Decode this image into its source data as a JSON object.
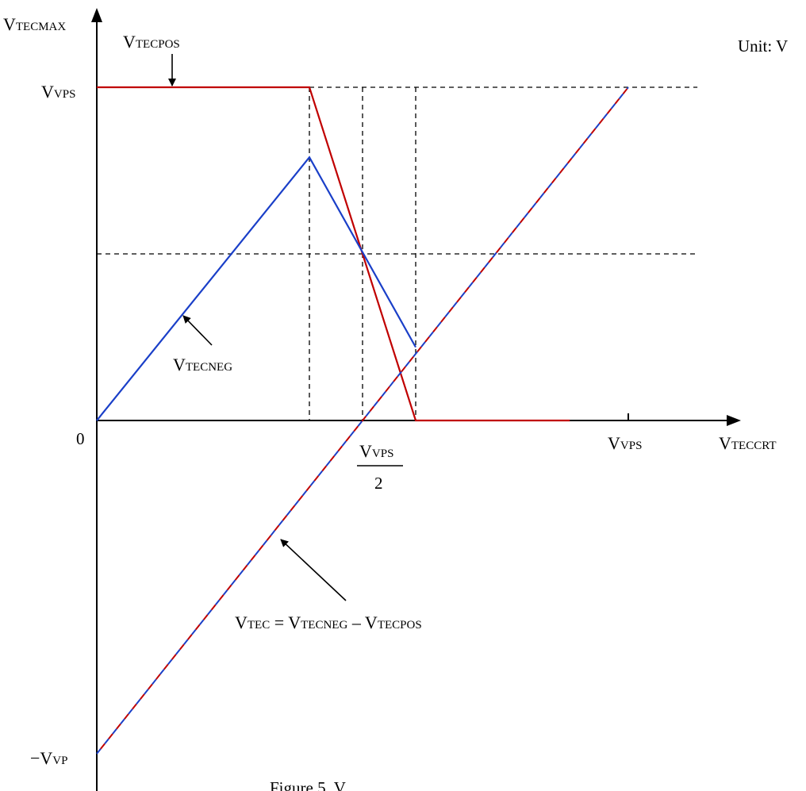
{
  "colors": {
    "tecpos": "#c00000",
    "tecneg": "#1a3fc8",
    "axis": "#000000",
    "guide": "#000000"
  },
  "labels": {
    "y_axis": {
      "main": "V",
      "sub": "TECMAX"
    },
    "x_axis": {
      "main": "V",
      "sub": "TECCRT"
    },
    "tecpos": {
      "main": "V",
      "sub": "TECPOS"
    },
    "tecneg": {
      "main": "V",
      "sub": "TECNEG"
    },
    "vps_top": {
      "main": "V",
      "sub": "VPS"
    },
    "vps_x": {
      "main": "V",
      "sub": "VPS"
    },
    "half_num": {
      "main": "V",
      "sub": "VPS"
    },
    "half_den": "2",
    "origin": "0",
    "neg_vp": {
      "main": "−V",
      "sub": "VP"
    },
    "unit": "Unit: V",
    "vtec_formula": {
      "v1": "V",
      "s1": "TEC",
      "eq": " = ",
      "v2": "V",
      "s2": "TECNEG",
      "minus": " – ",
      "v3": "V",
      "s3": "TECPOS"
    },
    "caption": "Figure 5. V"
  },
  "chart_data": {
    "type": "line",
    "x_axis_label": "VTECCRT",
    "y_axis_label": "VTECMAX",
    "x_ticks": [
      "0",
      "VPS/2",
      "VPS"
    ],
    "y_ticks": [
      "VPS",
      "0",
      "−VP"
    ],
    "xlim": [
      0,
      1.0
    ],
    "ylim": [
      -1.0,
      1.0
    ],
    "series": [
      {
        "name": "VTECPOS",
        "color": "#c00000",
        "style": "solid",
        "x": [
          0,
          0.4,
          0.6,
          0.89
        ],
        "y": [
          1.0,
          1.0,
          0,
          0
        ]
      },
      {
        "name": "VTECNEG",
        "color": "#1a3fc8",
        "style": "solid",
        "x": [
          0,
          0.4,
          0.6
        ],
        "y": [
          0,
          0.79,
          0.22
        ]
      },
      {
        "name": "VTEC = VTECNEG – VTECPOS",
        "color": "#1a3fc8",
        "color2": "#c00000",
        "style": "dashed",
        "x": [
          0,
          1.0
        ],
        "y": [
          -1.0,
          1.0
        ]
      }
    ],
    "guides": {
      "vertical_x": [
        0.4,
        0.5,
        0.6
      ],
      "horizontal_y": [
        1.0,
        0.5
      ],
      "horizontal_end_x": 1.13
    }
  }
}
